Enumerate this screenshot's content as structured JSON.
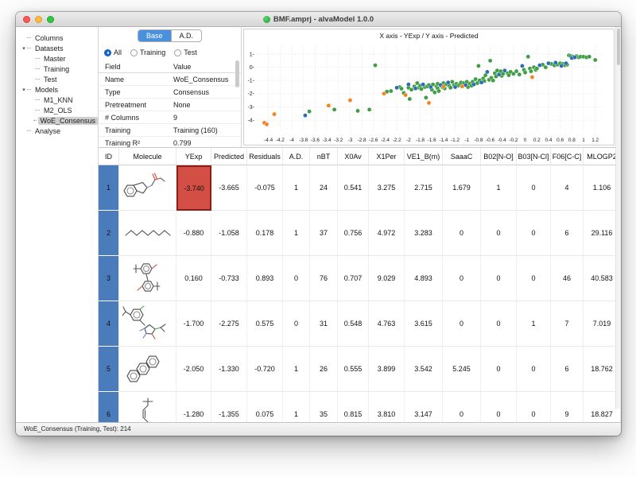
{
  "window": {
    "title": "BMF.amprj - alvaModel 1.0.0"
  },
  "colors": {
    "tab_accent": "#4a90dd",
    "id_cell_blue": "#4a7cbb",
    "selected_cell_red": "#d34f45",
    "point_green": "#3f9e44",
    "point_blue": "#2e6db6",
    "point_orange": "#f5821f"
  },
  "sidebar": {
    "items": [
      {
        "label": "Columns",
        "level": 0,
        "expander": false,
        "selected": false
      },
      {
        "label": "Datasets",
        "level": 0,
        "expander": true,
        "selected": false
      },
      {
        "label": "Master",
        "level": 1,
        "expander": false,
        "selected": false
      },
      {
        "label": "Training",
        "level": 1,
        "expander": false,
        "selected": false
      },
      {
        "label": "Test",
        "level": 1,
        "expander": false,
        "selected": false
      },
      {
        "label": "Models",
        "level": 0,
        "expander": true,
        "selected": false
      },
      {
        "label": "M1_KNN",
        "level": 1,
        "expander": false,
        "selected": false
      },
      {
        "label": "M2_OLS",
        "level": 1,
        "expander": false,
        "selected": false
      },
      {
        "label": "WoE_Consensus",
        "level": 1,
        "expander": false,
        "selected": true
      },
      {
        "label": "Analyse",
        "level": 0,
        "expander": false,
        "selected": false
      }
    ]
  },
  "info_panel": {
    "tabs": [
      {
        "label": "Base",
        "selected": true
      },
      {
        "label": "A.D.",
        "selected": false
      }
    ],
    "radios": [
      {
        "label": "All",
        "selected": true
      },
      {
        "label": "Training",
        "selected": false
      },
      {
        "label": "Test",
        "selected": false
      }
    ],
    "fields": [
      {
        "field": "Field",
        "value": "Value",
        "header": true
      },
      {
        "field": "Name",
        "value": "WoE_Consensus",
        "header": false
      },
      {
        "field": "Type",
        "value": "Consensus",
        "header": false
      },
      {
        "field": "Pretreatment",
        "value": "None",
        "header": false
      },
      {
        "field": "# Columns",
        "value": "9",
        "header": false
      },
      {
        "field": "Training",
        "value": "Training (160)",
        "header": false
      },
      {
        "field": "Training R²",
        "value": "0.799",
        "header": false
      },
      {
        "field": "Training Q² 5-fold",
        "value": "0.791",
        "header": false
      }
    ]
  },
  "chart_data": {
    "type": "scatter",
    "title": "X axis - YExp / Y axis - Predicted",
    "xlabel": "YExp",
    "ylabel": "Predicted",
    "xlim": [
      -4.6,
      1.3
    ],
    "ylim": [
      -4.9,
      1.6
    ],
    "grid": true,
    "legend": "none",
    "xticks": [
      "-4.4",
      "-4.2",
      "-4",
      "-3.8",
      "-3.6",
      "-3.4",
      "-3.2",
      "-3",
      "-2.8",
      "-2.6",
      "-2.4",
      "-2.2",
      "-2",
      "-1.8",
      "-1.6",
      "-1.4",
      "-1.2",
      "-1",
      "-0.8",
      "-0.6",
      "-0.4",
      "-0.2",
      "0",
      "0.2",
      "0.4",
      "0.6",
      "0.8",
      "1",
      "1.2"
    ],
    "yticks": [
      "1",
      "0",
      "-1",
      "-2",
      "-3",
      "-4"
    ],
    "series": [
      {
        "name": "green-points",
        "color": "#3f9e44",
        "points": [
          [
            -3.7,
            -3.35
          ],
          [
            -3.27,
            -3.2
          ],
          [
            -2.87,
            -3.3
          ],
          [
            -2.67,
            -3.2
          ],
          [
            -2.57,
            0.15
          ],
          [
            -2.37,
            -1.85
          ],
          [
            -2.3,
            -1.8
          ],
          [
            -2.15,
            -1.5
          ],
          [
            -2.12,
            -1.62
          ],
          [
            -2.08,
            -1.95
          ],
          [
            -2.0,
            -1.55
          ],
          [
            -1.98,
            -2.4
          ],
          [
            -1.95,
            -1.7
          ],
          [
            -1.9,
            -1.45
          ],
          [
            -1.85,
            -1.2
          ],
          [
            -1.82,
            -1.55
          ],
          [
            -1.8,
            -1.4
          ],
          [
            -1.78,
            -1.65
          ],
          [
            -1.72,
            -1.5
          ],
          [
            -1.7,
            -2.3
          ],
          [
            -1.68,
            -1.45
          ],
          [
            -1.65,
            -1.35
          ],
          [
            -1.6,
            -1.7
          ],
          [
            -1.58,
            -1.3
          ],
          [
            -1.55,
            -1.9
          ],
          [
            -1.52,
            -1.45
          ],
          [
            -1.5,
            -1.25
          ],
          [
            -1.5,
            -1.6
          ],
          [
            -1.48,
            -1.8
          ],
          [
            -1.42,
            -1.5
          ],
          [
            -1.4,
            -1.2
          ],
          [
            -1.38,
            -1.6
          ],
          [
            -1.35,
            -1.3
          ],
          [
            -1.3,
            -1.4
          ],
          [
            -1.28,
            -1.55
          ],
          [
            -1.25,
            -1.1
          ],
          [
            -1.22,
            -1.35
          ],
          [
            -1.18,
            -1.25
          ],
          [
            -1.15,
            -1.4
          ],
          [
            -1.12,
            -1.3
          ],
          [
            -1.1,
            -1.15
          ],
          [
            -1.05,
            -1.2
          ],
          [
            -1.0,
            -1.1
          ],
          [
            -0.98,
            -1.5
          ],
          [
            -0.95,
            -1.25
          ],
          [
            -0.92,
            -1.4
          ],
          [
            -0.9,
            -1.1
          ],
          [
            -0.85,
            -0.9
          ],
          [
            -0.82,
            -1.2
          ],
          [
            -0.8,
            0.1
          ],
          [
            -0.78,
            -1.0
          ],
          [
            -0.72,
            -0.85
          ],
          [
            -0.7,
            -1.05
          ],
          [
            -0.68,
            -0.6
          ],
          [
            -0.62,
            -0.95
          ],
          [
            -0.6,
            0.5
          ],
          [
            -0.58,
            -0.8
          ],
          [
            -0.55,
            -1.0
          ],
          [
            -0.52,
            -0.45
          ],
          [
            -0.5,
            -0.7
          ],
          [
            -0.48,
            -0.25
          ],
          [
            -0.42,
            -0.3
          ],
          [
            -0.4,
            -0.65
          ],
          [
            -0.38,
            -0.5
          ],
          [
            -0.3,
            -0.45
          ],
          [
            -0.28,
            -0.6
          ],
          [
            -0.25,
            -0.35
          ],
          [
            -0.2,
            -0.5
          ],
          [
            -0.15,
            -0.3
          ],
          [
            -0.1,
            -0.55
          ],
          [
            -0.02,
            -0.2
          ],
          [
            0.0,
            -0.4
          ],
          [
            0.05,
            0.8
          ],
          [
            0.08,
            -0.1
          ],
          [
            0.1,
            -0.3
          ],
          [
            0.15,
            0.0
          ],
          [
            0.18,
            -0.2
          ],
          [
            0.2,
            -0.1
          ],
          [
            0.3,
            0.2
          ],
          [
            0.35,
            0.0
          ],
          [
            0.45,
            0.25
          ],
          [
            0.5,
            0.15
          ],
          [
            0.55,
            0.2
          ],
          [
            0.6,
            0.3
          ],
          [
            0.65,
            0.25
          ],
          [
            0.68,
            0.15
          ],
          [
            0.72,
            0.2
          ],
          [
            0.75,
            0.9
          ],
          [
            0.78,
            0.85
          ],
          [
            0.82,
            0.8
          ],
          [
            0.88,
            0.85
          ],
          [
            0.9,
            0.8
          ],
          [
            0.92,
            0.75
          ],
          [
            0.95,
            0.8
          ],
          [
            1.0,
            0.8
          ],
          [
            1.05,
            0.75
          ],
          [
            1.1,
            0.8
          ],
          [
            1.2,
            0.55
          ]
        ]
      },
      {
        "name": "blue-points",
        "color": "#2e6db6",
        "points": [
          [
            -3.77,
            -3.65
          ],
          [
            -2.2,
            -1.55
          ],
          [
            -2.0,
            -1.3
          ],
          [
            -1.88,
            -1.6
          ],
          [
            -1.75,
            -1.3
          ],
          [
            -1.62,
            -1.5
          ],
          [
            -1.45,
            -1.35
          ],
          [
            -1.32,
            -1.15
          ],
          [
            -1.2,
            -1.5
          ],
          [
            -1.02,
            -1.35
          ],
          [
            -0.88,
            -1.3
          ],
          [
            -0.75,
            -1.15
          ],
          [
            -0.65,
            -0.35
          ],
          [
            -0.45,
            -0.55
          ],
          [
            -0.35,
            -0.25
          ],
          [
            -0.05,
            0.1
          ],
          [
            0.25,
            0.15
          ],
          [
            0.4,
            0.3
          ],
          [
            0.52,
            0.35
          ],
          [
            0.62,
            0.1
          ],
          [
            0.7,
            0.3
          ],
          [
            0.8,
            0.7
          ],
          [
            0.85,
            0.75
          ]
        ]
      },
      {
        "name": "orange-points",
        "color": "#f5821f",
        "points": [
          [
            -4.47,
            -4.2
          ],
          [
            -4.43,
            -4.32
          ],
          [
            -4.3,
            -3.55
          ],
          [
            -3.37,
            -2.9
          ],
          [
            -3.0,
            -2.5
          ],
          [
            -2.42,
            -2.0
          ],
          [
            -2.05,
            -2.1
          ],
          [
            -1.65,
            -2.7
          ],
          [
            -1.4,
            -1.45
          ],
          [
            -1.08,
            -1.45
          ],
          [
            0.12,
            -0.75
          ]
        ]
      }
    ]
  },
  "table": {
    "columns": [
      "ID",
      "Molecule",
      "YExp",
      "Predicted",
      "Residuals",
      "A.D.",
      "nBT",
      "X0Av",
      "X1Per",
      "VE1_B(m)",
      "SaaaC",
      "B02[N-O]",
      "B03[N-Cl]",
      "F06[C-C]",
      "MLOGP2"
    ],
    "rows": [
      {
        "id": "1",
        "molecule": "benzimidazole-carbamate",
        "highlight_yexp": true,
        "values": [
          "-3.740",
          "-3.665",
          "-0.075",
          "1",
          "24",
          "0.541",
          "3.275",
          "2.715",
          "1.679",
          "1",
          "0",
          "4",
          "1.106"
        ]
      },
      {
        "id": "2",
        "molecule": "alkane-chain",
        "highlight_yexp": false,
        "values": [
          "-0.880",
          "-1.058",
          "0.178",
          "1",
          "37",
          "0.756",
          "4.972",
          "3.283",
          "0",
          "0",
          "0",
          "6",
          "29.116"
        ]
      },
      {
        "id": "3",
        "molecule": "di-ring-tert-butyl",
        "highlight_yexp": false,
        "values": [
          "0.160",
          "-0.733",
          "0.893",
          "0",
          "76",
          "0.707",
          "9.029",
          "4.893",
          "0",
          "0",
          "0",
          "46",
          "40.583"
        ]
      },
      {
        "id": "4",
        "molecule": "halo-pyrazole",
        "highlight_yexp": false,
        "values": [
          "-1.700",
          "-2.275",
          "0.575",
          "0",
          "31",
          "0.548",
          "4.763",
          "3.615",
          "0",
          "0",
          "1",
          "7",
          "7.019"
        ]
      },
      {
        "id": "5",
        "molecule": "anthracene",
        "highlight_yexp": false,
        "values": [
          "-2.050",
          "-1.330",
          "-0.720",
          "1",
          "26",
          "0.555",
          "3.899",
          "3.542",
          "5.245",
          "0",
          "0",
          "6",
          "18.762"
        ]
      },
      {
        "id": "6",
        "molecule": "branched-alkene",
        "highlight_yexp": false,
        "values": [
          "-1.280",
          "-1.355",
          "0.075",
          "1",
          "35",
          "0.815",
          "3.810",
          "3.147",
          "0",
          "0",
          "0",
          "9",
          "18.827"
        ]
      }
    ]
  },
  "status_bar": {
    "text": "WoE_Consensus (Training, Test): 214"
  }
}
